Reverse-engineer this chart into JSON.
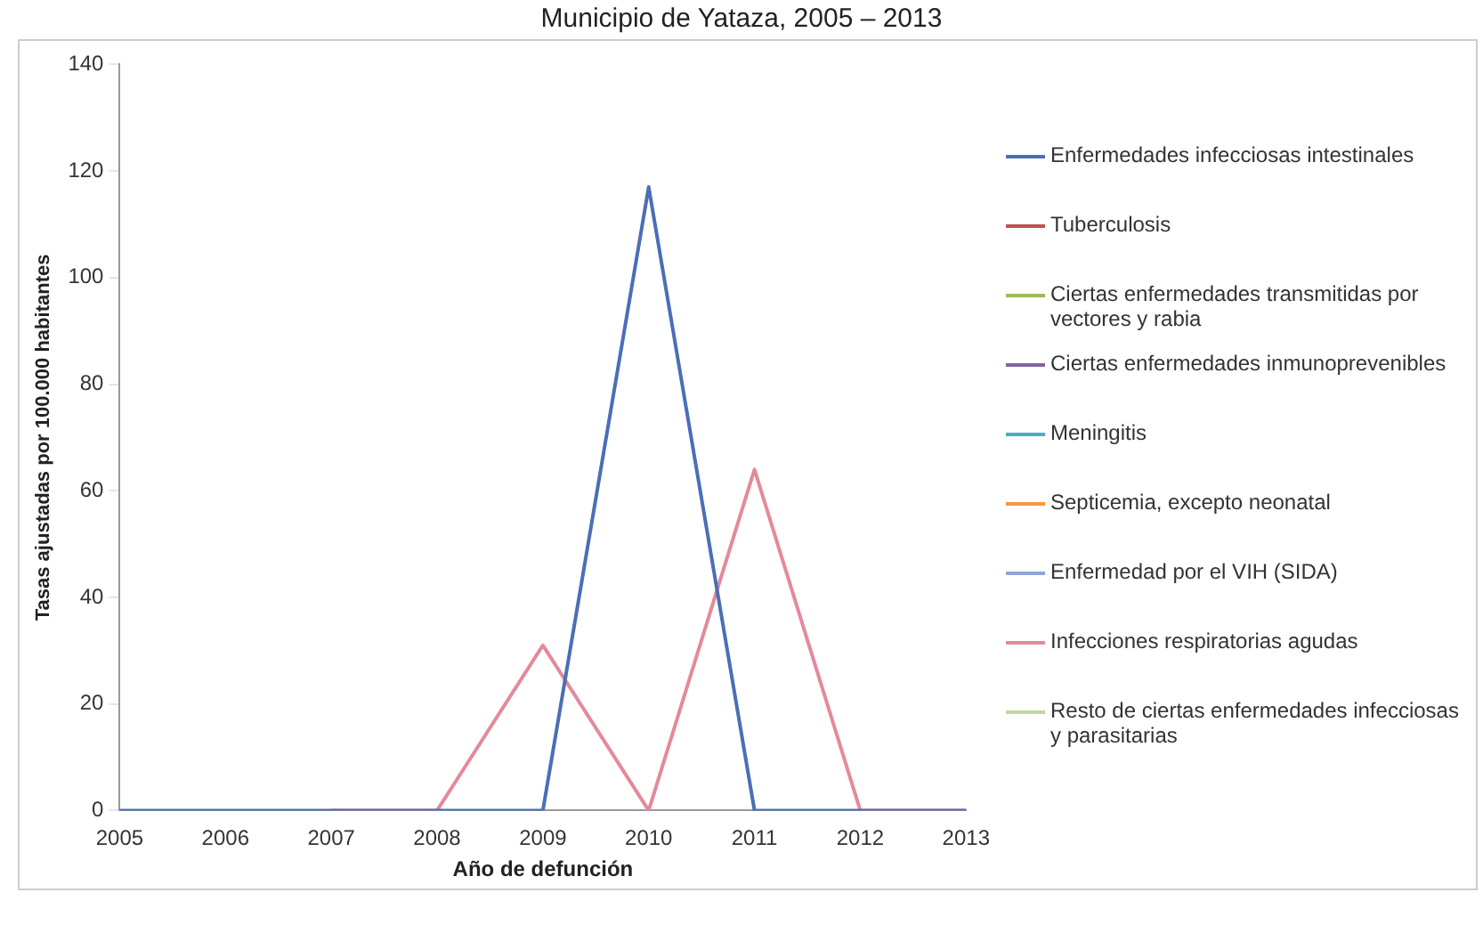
{
  "chart_data": {
    "type": "line",
    "title": "Municipio de Yataza, 2005 – 2013",
    "xlabel": "Año de defunción",
    "ylabel": "Tasas ajustadas por 100.000 habitantes",
    "categories": [
      "2005",
      "2006",
      "2007",
      "2008",
      "2009",
      "2010",
      "2011",
      "2012",
      "2013"
    ],
    "ylim": [
      0,
      140
    ],
    "yticks": [
      0,
      20,
      40,
      60,
      80,
      100,
      120,
      140
    ],
    "grid": false,
    "legend": "right",
    "marker": "none",
    "line_style": "solid",
    "series": [
      {
        "name": "Enfermedades infecciosas intestinales",
        "color": "#4a6fb5",
        "values": [
          0,
          0,
          0,
          0,
          0,
          117,
          0,
          0,
          0
        ]
      },
      {
        "name": "Tuberculosis",
        "color": "#c0504d",
        "values": [
          null,
          null,
          null,
          null,
          null,
          null,
          null,
          null,
          null
        ]
      },
      {
        "name": "Ciertas enfermedades transmitidas por vectores y rabia",
        "color": "#9bbb59",
        "values": [
          null,
          null,
          null,
          null,
          null,
          null,
          null,
          null,
          null
        ]
      },
      {
        "name": "Ciertas enfermedades inmunoprevenibles",
        "color": "#8064a2",
        "values": [
          null,
          null,
          null,
          null,
          null,
          null,
          null,
          null,
          null
        ]
      },
      {
        "name": "Meningitis",
        "color": "#4bacc6",
        "values": [
          null,
          null,
          null,
          null,
          null,
          null,
          null,
          null,
          null
        ]
      },
      {
        "name": "Septicemia, excepto neonatal",
        "color": "#f79646",
        "values": [
          null,
          null,
          null,
          null,
          null,
          null,
          null,
          null,
          null
        ]
      },
      {
        "name": "Enfermedad por el VIH (SIDA)",
        "color": "#8fa6d8",
        "values": [
          null,
          null,
          null,
          null,
          null,
          null,
          null,
          null,
          null
        ]
      },
      {
        "name": "Infecciones respiratorias agudas",
        "color": "#e38a9a",
        "values": [
          null,
          null,
          0,
          0,
          31,
          0,
          64,
          0,
          0
        ]
      },
      {
        "name": "Resto de ciertas enfermedades infecciosas y parasitarias",
        "color": "#c3d69b",
        "values": [
          null,
          null,
          null,
          null,
          null,
          null,
          null,
          null,
          null
        ]
      }
    ]
  }
}
